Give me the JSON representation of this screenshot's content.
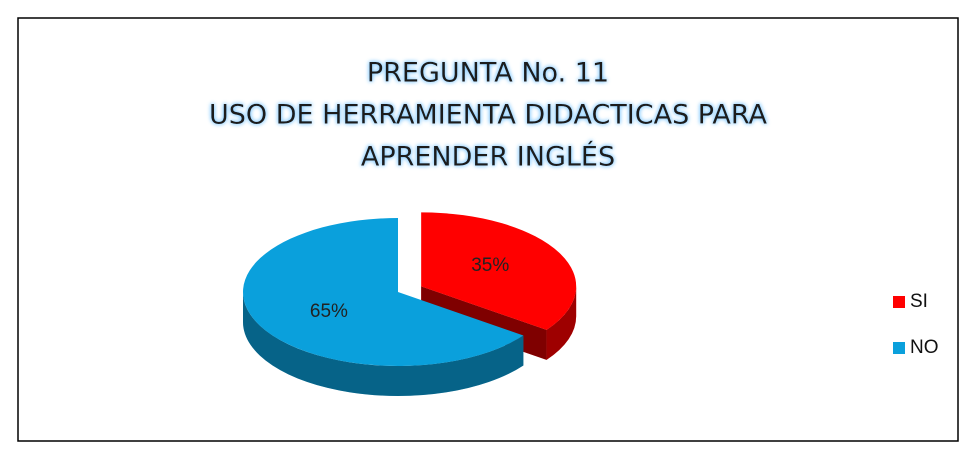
{
  "chart_data": {
    "type": "pie",
    "title": [
      "PREGUNTA No. 11",
      "USO DE HERRAMIENTA DIDACTICAS PARA",
      "APRENDER INGLÉS"
    ],
    "categories": [
      "SI",
      "NO"
    ],
    "values": [
      35,
      65
    ],
    "value_labels": [
      "35%",
      "65%"
    ],
    "colors": [
      "#ff0000",
      "#0aa0dc"
    ],
    "legend": "right"
  }
}
